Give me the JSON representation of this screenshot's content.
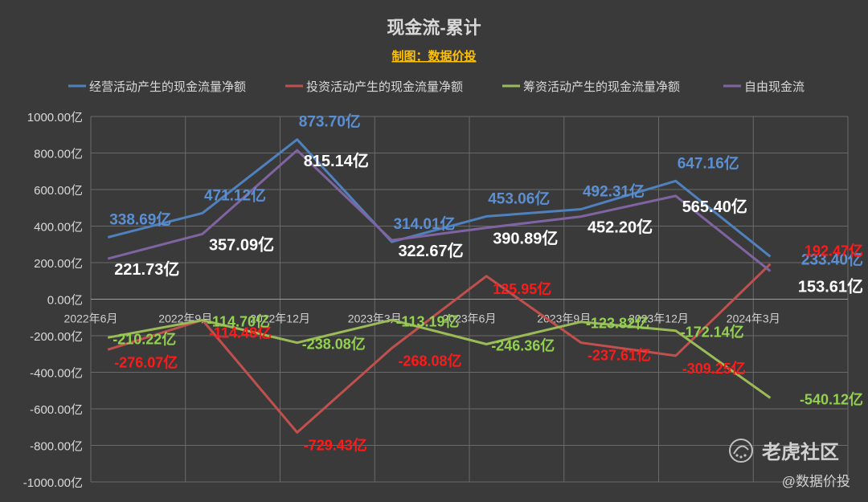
{
  "chart_data": {
    "type": "line",
    "title": "现金流-累计",
    "subtitle": "制图：数据价投",
    "categories": [
      "2022年6月",
      "2022年9月",
      "2022年12月",
      "2023年3月",
      "2023年6月",
      "2023年9月",
      "2023年12月",
      "2024年3月"
    ],
    "ylim": [
      -1000,
      1000
    ],
    "y_ticks": [
      1000,
      800,
      600,
      400,
      200,
      0,
      -200,
      -400,
      -600,
      -800,
      -1000
    ],
    "y_tick_labels": [
      "1000.00亿",
      "800.00亿",
      "600.00亿",
      "400.00亿",
      "200.00亿",
      "0.00亿",
      "-200.00亿",
      "-400.00亿",
      "-600.00亿",
      "-800.00亿",
      "-1000.00亿"
    ],
    "grid": true,
    "legend_position": "top",
    "series": [
      {
        "name": "经营活动产生的现金流量净额",
        "color": "#4f81bd",
        "label_color": "#5b8fd4",
        "values": [
          338.69,
          471.12,
          873.7,
          314.01,
          453.06,
          492.31,
          647.16,
          233.4
        ],
        "labels": [
          "338.69亿",
          "471.12亿",
          "873.70亿",
          "314.01亿",
          "453.06亿",
          "492.31亿",
          "647.16亿",
          "233.40亿"
        ]
      },
      {
        "name": "投资活动产生的现金流量净额",
        "color": "#c0504d",
        "label_color": "#ff1a1a",
        "values": [
          -276.07,
          -114.48,
          -729.43,
          -268.08,
          125.95,
          -237.61,
          -309.25,
          192.47
        ],
        "labels": [
          "-276.07亿",
          "-114.48亿",
          "-729.43亿",
          "-268.08亿",
          "125.95亿",
          "-237.61亿",
          "-309.25亿",
          "192.47亿"
        ]
      },
      {
        "name": "筹资活动产生的现金流量净额",
        "color": "#9bbb59",
        "label_color": "#92d050",
        "values": [
          -210.22,
          -114.7,
          -238.08,
          -113.19,
          -246.36,
          -123.82,
          -172.14,
          -540.12
        ],
        "labels": [
          "-210.22亿",
          "-114.70亿",
          "-238.08亿",
          "-113.19亿",
          "-246.36亿",
          "-123.82亿",
          "-172.14亿",
          "-540.12亿"
        ]
      },
      {
        "name": "自由现金流",
        "color": "#8064a2",
        "label_color": "#ffffff",
        "values": [
          221.73,
          357.09,
          815.14,
          322.67,
          390.89,
          452.2,
          565.4,
          153.61
        ],
        "labels": [
          "221.73亿",
          "357.09亿",
          "815.14亿",
          "322.67亿",
          "390.89亿",
          "452.20亿",
          "565.40亿",
          "153.61亿"
        ]
      }
    ]
  },
  "watermark": {
    "brand": "老虎社区",
    "author": "@数据价投"
  }
}
